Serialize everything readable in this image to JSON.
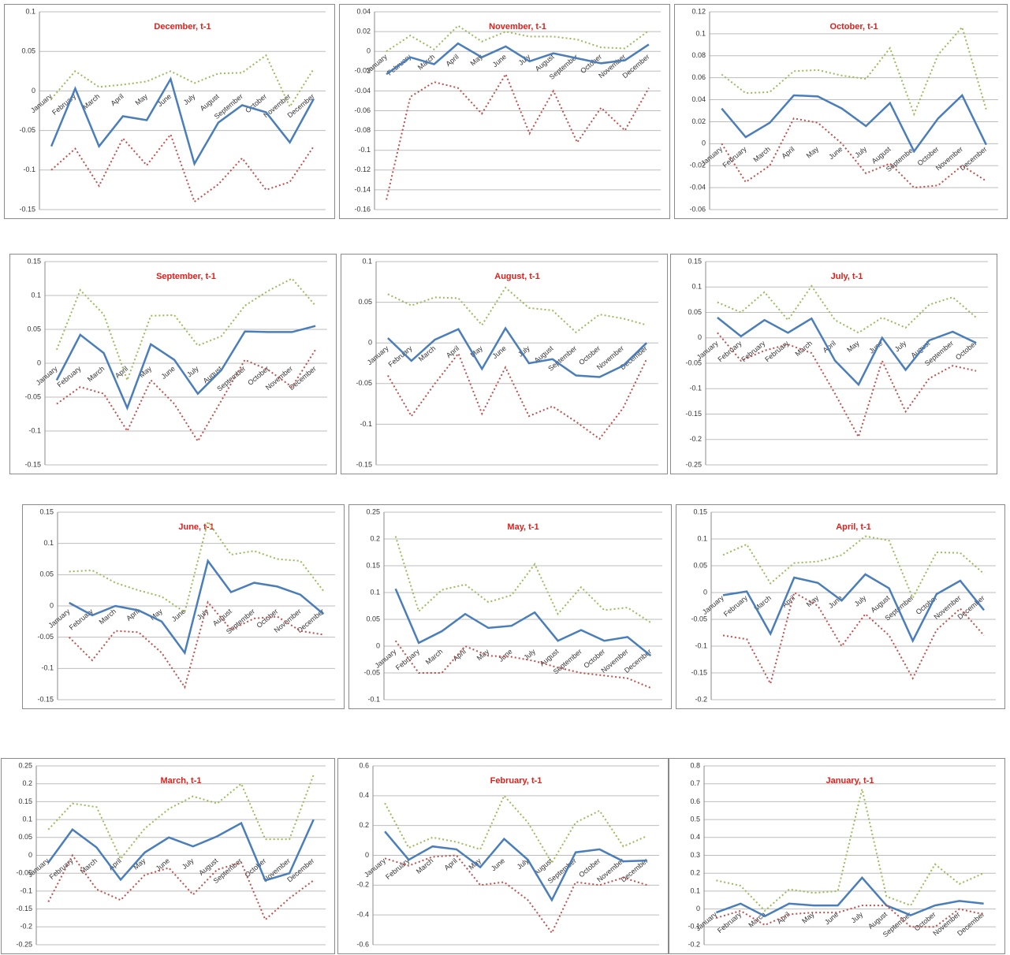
{
  "chart_data": [
    {
      "type": "line",
      "title": "December, t-1",
      "categories": [
        "January",
        "February",
        "March",
        "April",
        "May",
        "June",
        "July",
        "August",
        "September",
        "October",
        "November",
        "December"
      ],
      "ylim": [
        -0.15,
        0.1
      ],
      "yticks": [
        -0.15,
        -0.1,
        -0.05,
        0,
        0.05,
        0.1
      ],
      "grid": true,
      "series": [
        {
          "color": "#4a7ebb",
          "style": "solid",
          "values": [
            -0.07,
            0.003,
            -0.07,
            -0.032,
            -0.037,
            0.015,
            -0.092,
            -0.04,
            -0.018,
            -0.027,
            -0.065,
            -0.01
          ]
        },
        {
          "color": "#9bbb59",
          "style": "dotted",
          "values": [
            -0.01,
            0.025,
            0.005,
            0.008,
            0.012,
            0.025,
            0.01,
            0.022,
            0.023,
            0.045,
            -0.02,
            0.028
          ]
        },
        {
          "color": "#c0504d",
          "style": "dotted",
          "values": [
            -0.1,
            -0.073,
            -0.12,
            -0.06,
            -0.094,
            -0.055,
            -0.14,
            -0.118,
            -0.085,
            -0.125,
            -0.115,
            -0.07
          ]
        }
      ]
    },
    {
      "type": "line",
      "title": "November, t-1",
      "categories": [
        "January",
        "February",
        "March",
        "April",
        "May",
        "June",
        "July",
        "August",
        "September",
        "October",
        "November",
        "December"
      ],
      "ylim": [
        -0.16,
        0.04
      ],
      "yticks": [
        -0.16,
        -0.14,
        -0.12,
        -0.1,
        -0.08,
        -0.06,
        -0.04,
        -0.02,
        0,
        0.02,
        0.04
      ],
      "grid": true,
      "series": [
        {
          "color": "#4a7ebb",
          "style": "solid",
          "values": [
            -0.023,
            -0.006,
            -0.013,
            0.008,
            -0.006,
            0.005,
            -0.01,
            -0.002,
            -0.007,
            -0.012,
            -0.009,
            0.007
          ]
        },
        {
          "color": "#9bbb59",
          "style": "dotted",
          "values": [
            0,
            0.016,
            0.002,
            0.026,
            0.01,
            0.02,
            0.015,
            0.015,
            0.012,
            0.004,
            0.003,
            0.021
          ]
        },
        {
          "color": "#c0504d",
          "style": "dotted",
          "values": [
            -0.15,
            -0.046,
            -0.031,
            -0.037,
            -0.063,
            -0.023,
            -0.083,
            -0.04,
            -0.092,
            -0.057,
            -0.08,
            -0.037
          ]
        }
      ]
    },
    {
      "type": "line",
      "title": "October, t-1",
      "categories": [
        "January",
        "February",
        "March",
        "April",
        "May",
        "June",
        "July",
        "August",
        "September",
        "October",
        "November",
        "December"
      ],
      "ylim": [
        -0.06,
        0.12
      ],
      "yticks": [
        -0.06,
        -0.04,
        -0.02,
        0,
        0.02,
        0.04,
        0.06,
        0.08,
        0.1,
        0.12
      ],
      "grid": true,
      "series": [
        {
          "color": "#4a7ebb",
          "style": "solid",
          "values": [
            0.032,
            0.006,
            0.019,
            0.044,
            0.043,
            0.032,
            0.016,
            0.037,
            -0.007,
            0.023,
            0.044,
            -0.001
          ]
        },
        {
          "color": "#9bbb59",
          "style": "dotted",
          "values": [
            0.063,
            0.046,
            0.047,
            0.066,
            0.067,
            0.062,
            0.059,
            0.087,
            0.027,
            0.081,
            0.106,
            0.031
          ]
        },
        {
          "color": "#c0504d",
          "style": "dotted",
          "values": [
            0,
            -0.035,
            -0.02,
            0.023,
            0.019,
            0,
            -0.027,
            -0.018,
            -0.04,
            -0.038,
            -0.02,
            -0.034
          ]
        }
      ]
    },
    {
      "type": "line",
      "title": "September, t-1",
      "categories": [
        "January",
        "February",
        "March",
        "April",
        "May",
        "June",
        "July",
        "August",
        "September",
        "October",
        "November",
        "December"
      ],
      "ylim": [
        -0.15,
        0.15
      ],
      "yticks": [
        -0.15,
        -0.1,
        -0.05,
        0,
        0.05,
        0.1,
        0.15
      ],
      "grid": true,
      "series": [
        {
          "color": "#4a7ebb",
          "style": "solid",
          "values": [
            -0.025,
            0.042,
            0.015,
            -0.066,
            0.028,
            0.005,
            -0.045,
            -0.01,
            0.047,
            0.046,
            0.046,
            0.055
          ]
        },
        {
          "color": "#9bbb59",
          "style": "dotted",
          "values": [
            0.02,
            0.108,
            0.072,
            -0.025,
            0.07,
            0.071,
            0.026,
            0.04,
            0.085,
            0.107,
            0.125,
            0.085
          ]
        },
        {
          "color": "#c0504d",
          "style": "dotted",
          "values": [
            -0.06,
            -0.035,
            -0.045,
            -0.1,
            -0.025,
            -0.06,
            -0.115,
            -0.055,
            0.005,
            -0.01,
            -0.035,
            0.02
          ]
        }
      ]
    },
    {
      "type": "line",
      "title": "August, t-1",
      "categories": [
        "January",
        "February",
        "March",
        "April",
        "May",
        "June",
        "July",
        "August",
        "September",
        "October",
        "November",
        "December"
      ],
      "ylim": [
        -0.15,
        0.1
      ],
      "yticks": [
        -0.15,
        -0.1,
        -0.05,
        0,
        0.05,
        0.1
      ],
      "grid": true,
      "series": [
        {
          "color": "#4a7ebb",
          "style": "solid",
          "values": [
            0.006,
            -0.022,
            0.004,
            0.017,
            -0.032,
            0.018,
            -0.025,
            -0.02,
            -0.04,
            -0.042,
            -0.028,
            0
          ]
        },
        {
          "color": "#9bbb59",
          "style": "dotted",
          "values": [
            0.06,
            0.046,
            0.056,
            0.055,
            0.022,
            0.068,
            0.043,
            0.04,
            0.013,
            0.035,
            0.03,
            0.022
          ]
        },
        {
          "color": "#c0504d",
          "style": "dotted",
          "values": [
            -0.04,
            -0.09,
            -0.05,
            -0.013,
            -0.087,
            -0.03,
            -0.09,
            -0.078,
            -0.097,
            -0.118,
            -0.08,
            -0.02
          ]
        }
      ]
    },
    {
      "type": "line",
      "title": "July, t-1",
      "categories": [
        "January",
        "February",
        "February",
        "February",
        "March",
        "April",
        "May",
        "June",
        "July",
        "August",
        "September",
        "October"
      ],
      "ylim": [
        -0.25,
        0.15
      ],
      "yticks": [
        -0.25,
        -0.2,
        -0.15,
        -0.1,
        -0.05,
        0,
        0.05,
        0.1,
        0.15
      ],
      "grid": true,
      "series": [
        {
          "color": "#4a7ebb",
          "style": "solid",
          "values": [
            0.04,
            0.003,
            0.035,
            0.01,
            0.038,
            -0.045,
            -0.092,
            0,
            -0.063,
            -0.005,
            0.012,
            -0.01
          ]
        },
        {
          "color": "#9bbb59",
          "style": "dotted",
          "values": [
            0.07,
            0.05,
            0.09,
            0.035,
            0.102,
            0.035,
            0.01,
            0.04,
            0.02,
            0.065,
            0.08,
            0.04
          ]
        },
        {
          "color": "#c0504d",
          "style": "dotted",
          "values": [
            0.01,
            -0.045,
            -0.025,
            -0.013,
            -0.03,
            -0.11,
            -0.195,
            -0.045,
            -0.145,
            -0.08,
            -0.055,
            -0.065
          ]
        }
      ]
    },
    {
      "type": "line",
      "title": "June, t-1",
      "categories": [
        "January",
        "February",
        "March",
        "April",
        "May",
        "June",
        "July",
        "August",
        "September",
        "October",
        "November",
        "December"
      ],
      "ylim": [
        -0.15,
        0.15
      ],
      "yticks": [
        -0.15,
        -0.1,
        -0.05,
        0,
        0.05,
        0.1,
        0.15
      ],
      "grid": true,
      "series": [
        {
          "color": "#4a7ebb",
          "style": "solid",
          "values": [
            0.005,
            -0.015,
            0,
            -0.007,
            -0.025,
            -0.075,
            0.072,
            0.022,
            0.037,
            0.031,
            0.018,
            -0.013
          ]
        },
        {
          "color": "#9bbb59",
          "style": "dotted",
          "values": [
            0.055,
            0.057,
            0.037,
            0.025,
            0.015,
            -0.01,
            0.135,
            0.082,
            0.088,
            0.075,
            0.072,
            0.024
          ]
        },
        {
          "color": "#c0504d",
          "style": "dotted",
          "values": [
            -0.05,
            -0.087,
            -0.04,
            -0.042,
            -0.075,
            -0.13,
            0.006,
            -0.038,
            -0.02,
            -0.017,
            -0.04,
            -0.046
          ]
        }
      ]
    },
    {
      "type": "line",
      "title": "May, t-1",
      "categories": [
        "January",
        "February",
        "March",
        "April",
        "May",
        "June",
        "July",
        "August",
        "September",
        "October",
        "November",
        "December"
      ],
      "ylim": [
        -0.1,
        0.25
      ],
      "yticks": [
        -0.1,
        -0.05,
        0,
        0.05,
        0.1,
        0.15,
        0.2,
        0.25
      ],
      "grid": true,
      "series": [
        {
          "color": "#4a7ebb",
          "style": "solid",
          "values": [
            0.107,
            0.006,
            0.028,
            0.06,
            0.034,
            0.038,
            0.063,
            0.01,
            0.03,
            0.01,
            0.017,
            -0.018
          ]
        },
        {
          "color": "#9bbb59",
          "style": "dotted",
          "values": [
            0.205,
            0.065,
            0.105,
            0.115,
            0.082,
            0.095,
            0.153,
            0.06,
            0.11,
            0.067,
            0.072,
            0.044
          ]
        },
        {
          "color": "#c0504d",
          "style": "dotted",
          "values": [
            0.01,
            -0.05,
            -0.05,
            0,
            -0.018,
            -0.02,
            -0.028,
            -0.04,
            -0.05,
            -0.055,
            -0.06,
            -0.078
          ]
        }
      ]
    },
    {
      "type": "line",
      "title": "April, t-1",
      "categories": [
        "January",
        "February",
        "March",
        "April",
        "May",
        "June",
        "July",
        "August",
        "September",
        "October",
        "November",
        "December"
      ],
      "ylim": [
        -0.2,
        0.15
      ],
      "yticks": [
        -0.2,
        -0.15,
        -0.1,
        -0.05,
        0,
        0.05,
        0.1,
        0.15
      ],
      "grid": true,
      "series": [
        {
          "color": "#4a7ebb",
          "style": "solid",
          "values": [
            -0.005,
            0.002,
            -0.077,
            0.028,
            0.018,
            -0.015,
            0.034,
            0.008,
            -0.09,
            -0.003,
            0.022,
            -0.033
          ]
        },
        {
          "color": "#9bbb59",
          "style": "dotted",
          "values": [
            0.07,
            0.09,
            0.017,
            0.055,
            0.058,
            0.07,
            0.105,
            0.097,
            -0.01,
            0.075,
            0.074,
            0.035
          ]
        },
        {
          "color": "#c0504d",
          "style": "dotted",
          "values": [
            -0.08,
            -0.087,
            -0.17,
            0,
            -0.025,
            -0.1,
            -0.04,
            -0.08,
            -0.16,
            -0.07,
            -0.03,
            -0.08
          ]
        }
      ]
    },
    {
      "type": "line",
      "title": "March, t-1",
      "categories": [
        "January",
        "February",
        "March",
        "April",
        "May",
        "June",
        "July",
        "August",
        "September",
        "October",
        "November",
        "December"
      ],
      "ylim": [
        -0.25,
        0.25
      ],
      "yticks": [
        -0.25,
        -0.2,
        -0.15,
        -0.1,
        -0.05,
        0,
        0.05,
        0.1,
        0.15,
        0.2,
        0.25
      ],
      "grid": true,
      "series": [
        {
          "color": "#4a7ebb",
          "style": "solid",
          "values": [
            -0.02,
            0.072,
            0.022,
            -0.068,
            0.008,
            0.05,
            0.025,
            0.053,
            0.09,
            -0.07,
            -0.05,
            0.1
          ]
        },
        {
          "color": "#9bbb59",
          "style": "dotted",
          "values": [
            0.072,
            0.145,
            0.135,
            -0.01,
            0.075,
            0.13,
            0.165,
            0.145,
            0.2,
            0.045,
            0.045,
            0.225
          ]
        },
        {
          "color": "#c0504d",
          "style": "dotted",
          "values": [
            -0.13,
            0,
            -0.095,
            -0.125,
            -0.055,
            -0.035,
            -0.11,
            -0.04,
            -0.02,
            -0.18,
            -0.12,
            -0.07
          ]
        }
      ]
    },
    {
      "type": "line",
      "title": "February, t-1",
      "categories": [
        "January",
        "February",
        "March",
        "April",
        "May",
        "June",
        "July",
        "August",
        "September",
        "October",
        "November",
        "December"
      ],
      "ylim": [
        -0.6,
        0.6
      ],
      "yticks": [
        -0.6,
        -0.4,
        -0.2,
        0,
        0.2,
        0.4,
        0.6
      ],
      "grid": true,
      "series": [
        {
          "color": "#4a7ebb",
          "style": "solid",
          "values": [
            0.16,
            -0.03,
            0.06,
            0.04,
            -0.08,
            0.11,
            -0.03,
            -0.3,
            0.02,
            0.04,
            -0.04,
            -0.035
          ]
        },
        {
          "color": "#9bbb59",
          "style": "dotted",
          "values": [
            0.35,
            0.05,
            0.12,
            0.09,
            0.04,
            0.4,
            0.22,
            -0.05,
            0.22,
            0.3,
            0.06,
            0.13
          ]
        },
        {
          "color": "#c0504d",
          "style": "dotted",
          "values": [
            -0.02,
            -0.07,
            -0.01,
            0,
            -0.2,
            -0.18,
            -0.3,
            -0.52,
            -0.18,
            -0.2,
            -0.15,
            -0.2
          ]
        }
      ]
    },
    {
      "type": "line",
      "title": "January, t-1",
      "categories": [
        "January",
        "February",
        "March",
        "April",
        "May",
        "June",
        "July",
        "August",
        "September",
        "October",
        "November",
        "December"
      ],
      "ylim": [
        -0.2,
        0.8
      ],
      "yticks": [
        -0.2,
        -0.1,
        0,
        0.1,
        0.2,
        0.3,
        0.4,
        0.5,
        0.6,
        0.7,
        0.8
      ],
      "grid": true,
      "series": [
        {
          "color": "#4a7ebb",
          "style": "solid",
          "values": [
            -0.02,
            0.03,
            -0.04,
            0.03,
            0.02,
            0.02,
            0.175,
            0.02,
            -0.035,
            0.02,
            0.045,
            0.03
          ]
        },
        {
          "color": "#9bbb59",
          "style": "dotted",
          "values": [
            0.16,
            0.13,
            -0.01,
            0.11,
            0.09,
            0.1,
            0.67,
            0.07,
            0.02,
            0.25,
            0.14,
            0.2
          ]
        },
        {
          "color": "#c0504d",
          "style": "dotted",
          "values": [
            -0.05,
            -0.01,
            -0.09,
            -0.03,
            -0.02,
            -0.02,
            0.02,
            0.02,
            -0.1,
            -0.1,
            0,
            -0.03
          ]
        }
      ]
    }
  ]
}
